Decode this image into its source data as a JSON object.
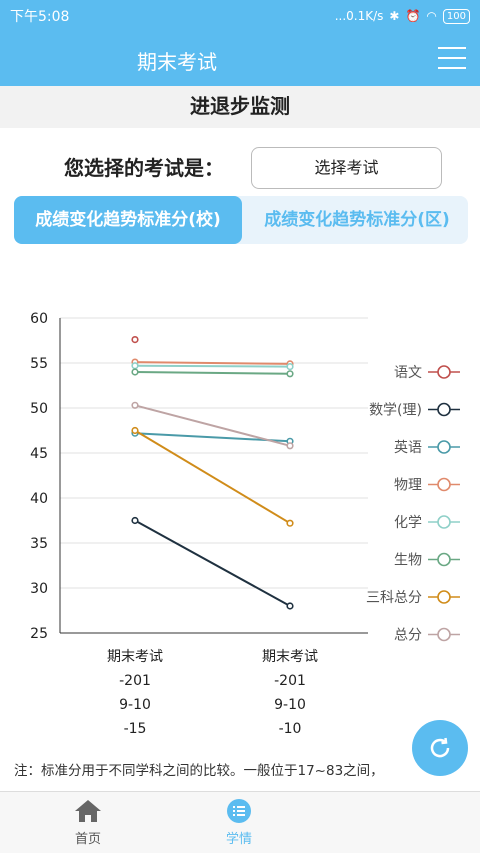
{
  "status": {
    "time": "下午5:08",
    "network_speed": "...0.1K/s",
    "battery": "100"
  },
  "header": {
    "title": "期末考试"
  },
  "section": {
    "title": "进退步监测"
  },
  "selector": {
    "label": "您选择的考试是：",
    "button": "选择考试"
  },
  "tabs": [
    {
      "label": "成绩变化趋势标准分(校)",
      "active": true
    },
    {
      "label": "成绩变化趋势标准分(区)",
      "active": false
    }
  ],
  "chart_data": {
    "type": "line",
    "ylim": [
      25,
      60
    ],
    "yticks": [
      25,
      30,
      35,
      40,
      45,
      50,
      55,
      60
    ],
    "categories": [
      [
        "期末考试",
        "-201",
        "9-10",
        "-15"
      ],
      [
        "期末考试",
        "-201",
        "9-10",
        "-10"
      ]
    ],
    "series": [
      {
        "name": "语文",
        "color": "#c0504d",
        "values": [
          57.6,
          null
        ]
      },
      {
        "name": "数学(理)",
        "color": "#1f3140",
        "values": [
          37.5,
          28.0
        ]
      },
      {
        "name": "英语",
        "color": "#4a9aa8",
        "values": [
          47.2,
          46.3
        ]
      },
      {
        "name": "物理",
        "color": "#e08a6c",
        "values": [
          55.1,
          54.9
        ]
      },
      {
        "name": "化学",
        "color": "#8fd0c8",
        "values": [
          54.7,
          54.6
        ]
      },
      {
        "name": "生物",
        "color": "#6aa884",
        "values": [
          54.0,
          53.8
        ]
      },
      {
        "name": "三科总分",
        "color": "#d08c1a",
        "values": [
          47.5,
          37.2
        ]
      },
      {
        "name": "总分",
        "color": "#bea4a4",
        "values": [
          50.3,
          45.8
        ]
      }
    ]
  },
  "note": "注：标准分用于不同学科之间的比较。一般位于17~83之间，",
  "nav": {
    "home": "首页",
    "study": "学情"
  }
}
